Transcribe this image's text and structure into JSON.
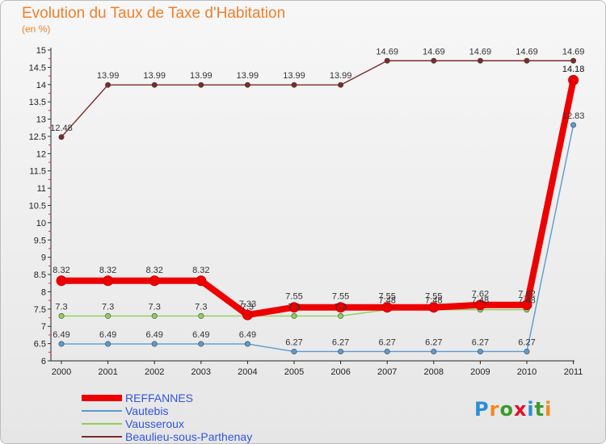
{
  "title": "Evolution du Taux de Taxe d'Habitation",
  "subtitle": "(en %)",
  "logo": {
    "text": "Proxiti",
    "letter_colors": [
      "#2a8fd4",
      "#f08a1c",
      "#3c9a2c",
      "#e0102a",
      "#2a8fd4",
      "#3c9a2c",
      "#f08a1c"
    ]
  },
  "chart_data": {
    "type": "line",
    "x": [
      "2000",
      "2001",
      "2002",
      "2003",
      "2004",
      "2005",
      "2006",
      "2007",
      "2008",
      "2009",
      "2010",
      "2011"
    ],
    "ylim": [
      6,
      15
    ],
    "y_ticks": [
      "6",
      "6.5",
      "7",
      "7.5",
      "8",
      "8.5",
      "9",
      "9.5",
      "10",
      "10.5",
      "11",
      "11.5",
      "12",
      "12.5",
      "13",
      "13.5",
      "14",
      "14.5",
      "15"
    ],
    "grid": false,
    "legend_position": "bottom-left",
    "series": [
      {
        "name": "Beaulieu-sous-Parthenay",
        "color": "#7b2a2a",
        "values": [
          12.48,
          13.99,
          13.99,
          13.99,
          13.99,
          13.99,
          13.99,
          14.69,
          14.69,
          14.69,
          14.69,
          14.69
        ],
        "labels": [
          "12.48",
          "13.99",
          "13.99",
          "13.99",
          "13.99",
          "13.99",
          "13.99",
          "14.69",
          "14.69",
          "14.69",
          "14.69",
          "14.69"
        ]
      },
      {
        "name": "Vausseroux",
        "color": "#8ed05a",
        "values": [
          7.3,
          7.3,
          7.3,
          7.3,
          7.3,
          7.3,
          7.3,
          7.48,
          7.48,
          7.48,
          7.48,
          14.18
        ],
        "labels": [
          "7.3",
          "7.3",
          "7.3",
          "7.3",
          "7.3",
          "7.3",
          "7.3",
          "7.48",
          "7.48",
          "7.48",
          "7.48",
          "14.18"
        ]
      },
      {
        "name": "Vautebis",
        "color": "#5b9bd0",
        "values": [
          6.49,
          6.49,
          6.49,
          6.49,
          6.49,
          6.27,
          6.27,
          6.27,
          6.27,
          6.27,
          6.27,
          12.83
        ],
        "labels": [
          "6.49",
          "6.49",
          "6.49",
          "6.49",
          "6.49",
          "6.27",
          "6.27",
          "6.27",
          "6.27",
          "6.27",
          "6.27",
          "12.83"
        ]
      },
      {
        "name": "REFFANNES",
        "color": "#ee0000",
        "values": [
          8.32,
          8.32,
          8.32,
          8.32,
          7.33,
          7.55,
          7.55,
          7.55,
          7.55,
          7.62,
          7.62,
          14.13
        ],
        "labels": [
          "8.32",
          "8.32",
          "8.32",
          "8.32",
          "7.33",
          "7.55",
          "7.55",
          "7.55",
          "7.55",
          "7.62",
          "7.62",
          "14.13"
        ]
      }
    ],
    "legend": [
      {
        "name": "REFFANNES",
        "color": "#ee0000",
        "text_color": "#3355dd"
      },
      {
        "name": "Vautebis",
        "color": "#5b9bd0",
        "text_color": "#3355dd"
      },
      {
        "name": "Vausseroux",
        "color": "#8ed05a",
        "text_color": "#3355dd"
      },
      {
        "name": "Beaulieu-sous-Parthenay",
        "color": "#7b2a2a",
        "text_color": "#3355dd"
      }
    ]
  }
}
